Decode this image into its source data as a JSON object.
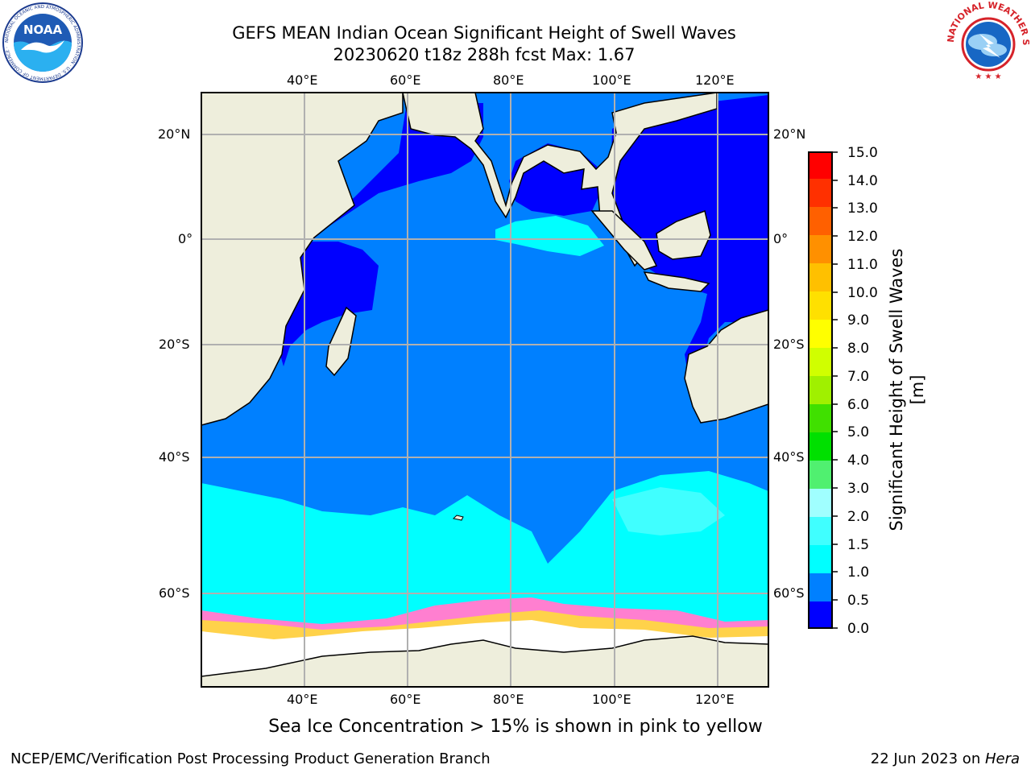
{
  "title": {
    "line1": "GEFS MEAN Indian Ocean Significant Height of Swell Waves",
    "line2": "20230620 t18z 288h fcst   Max: 1.67"
  },
  "axes": {
    "lon_labels": [
      "40°E",
      "60°E",
      "80°E",
      "100°E",
      "120°E"
    ],
    "lat_labels": [
      "20°N",
      "0°",
      "20°S",
      "40°S",
      "60°S"
    ]
  },
  "colorbar": {
    "label": "Significant Height of Swell Waves [m]",
    "ticks": [
      "0.0",
      "0.5",
      "1.0",
      "1.5",
      "2.0",
      "3.0",
      "4.0",
      "5.0",
      "6.0",
      "7.0",
      "8.0",
      "9.0",
      "10.0",
      "11.0",
      "12.0",
      "13.0",
      "14.0",
      "15.0"
    ],
    "colors": [
      "#0000ff",
      "#0080ff",
      "#00ffff",
      "#40ffff",
      "#a0ffff",
      "#50f070",
      "#00e000",
      "#40e000",
      "#a0f000",
      "#d0ff00",
      "#ffff00",
      "#ffe000",
      "#ffc000",
      "#ff9000",
      "#ff6000",
      "#ff3000",
      "#ff0000"
    ]
  },
  "caption": "Sea Ice Concentration > 15% is shown in pink to yellow",
  "footer": {
    "left": "NCEP/EMC/Verification Post Processing Product Generation Branch",
    "right_date": "22 Jun 2023 on ",
    "right_host": "Hera"
  },
  "logos": {
    "noaa_text": "NOAA",
    "noaa_ring": "NATIONAL OCEANIC AND ATMOSPHERIC ADMINISTRATION · U.S. DEPARTMENT OF COMMERCE ·",
    "nws_ring": "NATIONAL WEATHER SERVICE"
  },
  "map_colors": {
    "land": "#eeeedc",
    "coast": "#000000",
    "grid": "#b0b0b0",
    "ice_pink": "#ff7fd0",
    "ice_yellow": "#ffd24a"
  }
}
